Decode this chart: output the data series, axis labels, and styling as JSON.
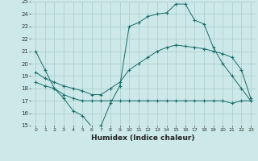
{
  "xlabel": "Humidex (Indice chaleur)",
  "bg_color": "#cce8e8",
  "grid_color": "#aacccc",
  "line_color": "#1a6b6b",
  "xlim": [
    -0.5,
    23.5
  ],
  "ylim": [
    15,
    25
  ],
  "yticks": [
    15,
    16,
    17,
    18,
    19,
    20,
    21,
    22,
    23,
    24,
    25
  ],
  "xticks": [
    0,
    1,
    2,
    3,
    4,
    5,
    6,
    7,
    8,
    9,
    10,
    11,
    12,
    13,
    14,
    15,
    16,
    17,
    18,
    19,
    20,
    21,
    22,
    23
  ],
  "line1_x": [
    0,
    1,
    2,
    3,
    4,
    5,
    6,
    7,
    8,
    9,
    10,
    11,
    12,
    13,
    14,
    15,
    16,
    17,
    18,
    19,
    20,
    21,
    22,
    23
  ],
  "line1_y": [
    21,
    19.5,
    18,
    17.2,
    16.2,
    15.8,
    14.9,
    15.0,
    16.8,
    18.2,
    23.0,
    23.3,
    23.8,
    24.0,
    24.1,
    24.8,
    24.8,
    23.5,
    23.2,
    21.3,
    20.0,
    19.0,
    18.0,
    17.0
  ],
  "line2_x": [
    0,
    1,
    2,
    3,
    4,
    5,
    6,
    7,
    8,
    9,
    10,
    11,
    12,
    13,
    14,
    15,
    16,
    17,
    18,
    19,
    20,
    21,
    22,
    23
  ],
  "line2_y": [
    19.3,
    18.8,
    18.5,
    18.2,
    18.0,
    17.8,
    17.5,
    17.5,
    18.0,
    18.5,
    19.5,
    20.0,
    20.5,
    21.0,
    21.3,
    21.5,
    21.4,
    21.3,
    21.2,
    21.0,
    20.8,
    20.5,
    19.5,
    17.2
  ],
  "line3_x": [
    0,
    1,
    2,
    3,
    4,
    5,
    6,
    7,
    8,
    9,
    10,
    11,
    12,
    13,
    14,
    15,
    16,
    17,
    18,
    19,
    20,
    21,
    22,
    23
  ],
  "line3_y": [
    18.5,
    18.2,
    18.0,
    17.5,
    17.2,
    17.0,
    17.0,
    17.0,
    17.0,
    17.0,
    17.0,
    17.0,
    17.0,
    17.0,
    17.0,
    17.0,
    17.0,
    17.0,
    17.0,
    17.0,
    17.0,
    16.8,
    17.0,
    17.0
  ]
}
